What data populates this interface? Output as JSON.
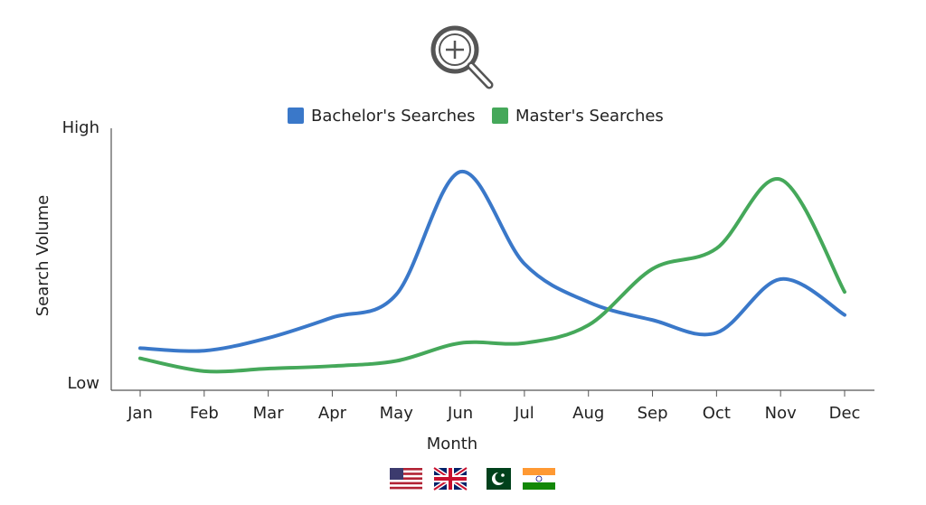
{
  "chart_data": {
    "type": "line",
    "xlabel": "Month",
    "ylabel": "Search Volume",
    "categories": [
      "Jan",
      "Feb",
      "Mar",
      "Apr",
      "May",
      "Jun",
      "Jul",
      "Aug",
      "Sep",
      "Oct",
      "Nov",
      "Dec"
    ],
    "series": [
      {
        "name": "Bachelor's Searches",
        "color": "#3a78c9",
        "values": [
          14,
          13,
          18,
          26,
          35,
          83,
          47,
          32,
          25,
          20,
          41,
          27
        ]
      },
      {
        "name": "Master's Searches",
        "color": "#45a85a",
        "values": [
          10,
          5,
          6,
          7,
          9,
          16,
          16,
          23,
          45,
          53,
          80,
          36
        ]
      }
    ],
    "ylim": [
      0,
      100
    ],
    "yticks": [
      {
        "value": 0,
        "label": "Low"
      },
      {
        "value": 100,
        "label": "High"
      }
    ]
  }
}
